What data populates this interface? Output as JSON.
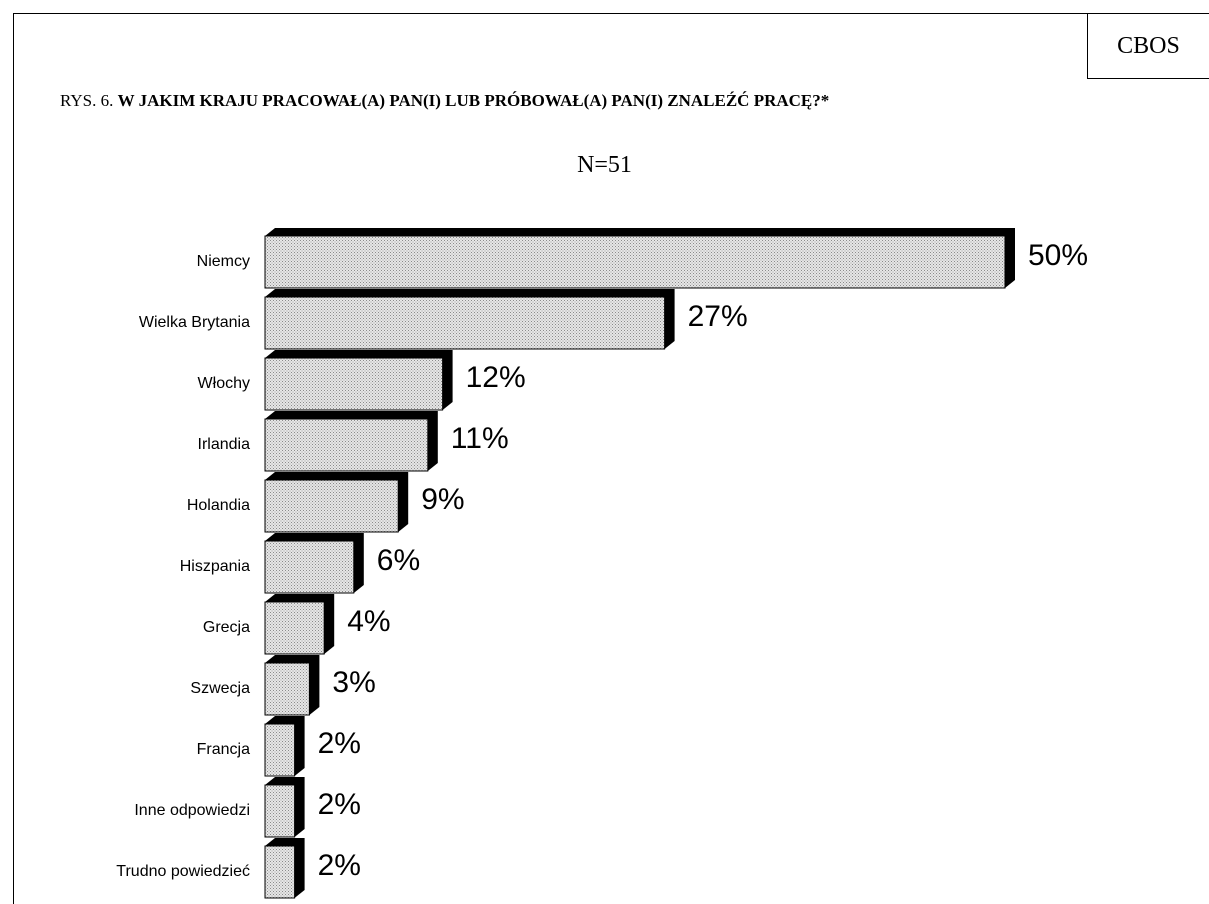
{
  "chart_data": {
    "type": "bar",
    "orientation": "horizontal",
    "source": "CBOS",
    "figure_label": "RYS. 6.",
    "title": "W JAKIM KRAJU PRACOWAŁ(A) PAN(I) LUB PRÓBOWAŁ(A) PAN(I) ZNALEŹĆ PRACĘ?*",
    "subtitle": "N=51",
    "categories": [
      "Niemcy",
      "Wielka Brytania",
      "Włochy",
      "Irlandia",
      "Holandia",
      "Hiszpania",
      "Grecja",
      "Szwecja",
      "Francja",
      "Inne odpowiedzi",
      "Trudno powiedzieć"
    ],
    "values": [
      50,
      27,
      12,
      11,
      9,
      6,
      4,
      3,
      2,
      2,
      2
    ],
    "value_labels": [
      "50%",
      "27%",
      "12%",
      "11%",
      "9%",
      "6%",
      "4%",
      "3%",
      "2%",
      "2%",
      "2%"
    ],
    "color": "#d4d4d4"
  }
}
